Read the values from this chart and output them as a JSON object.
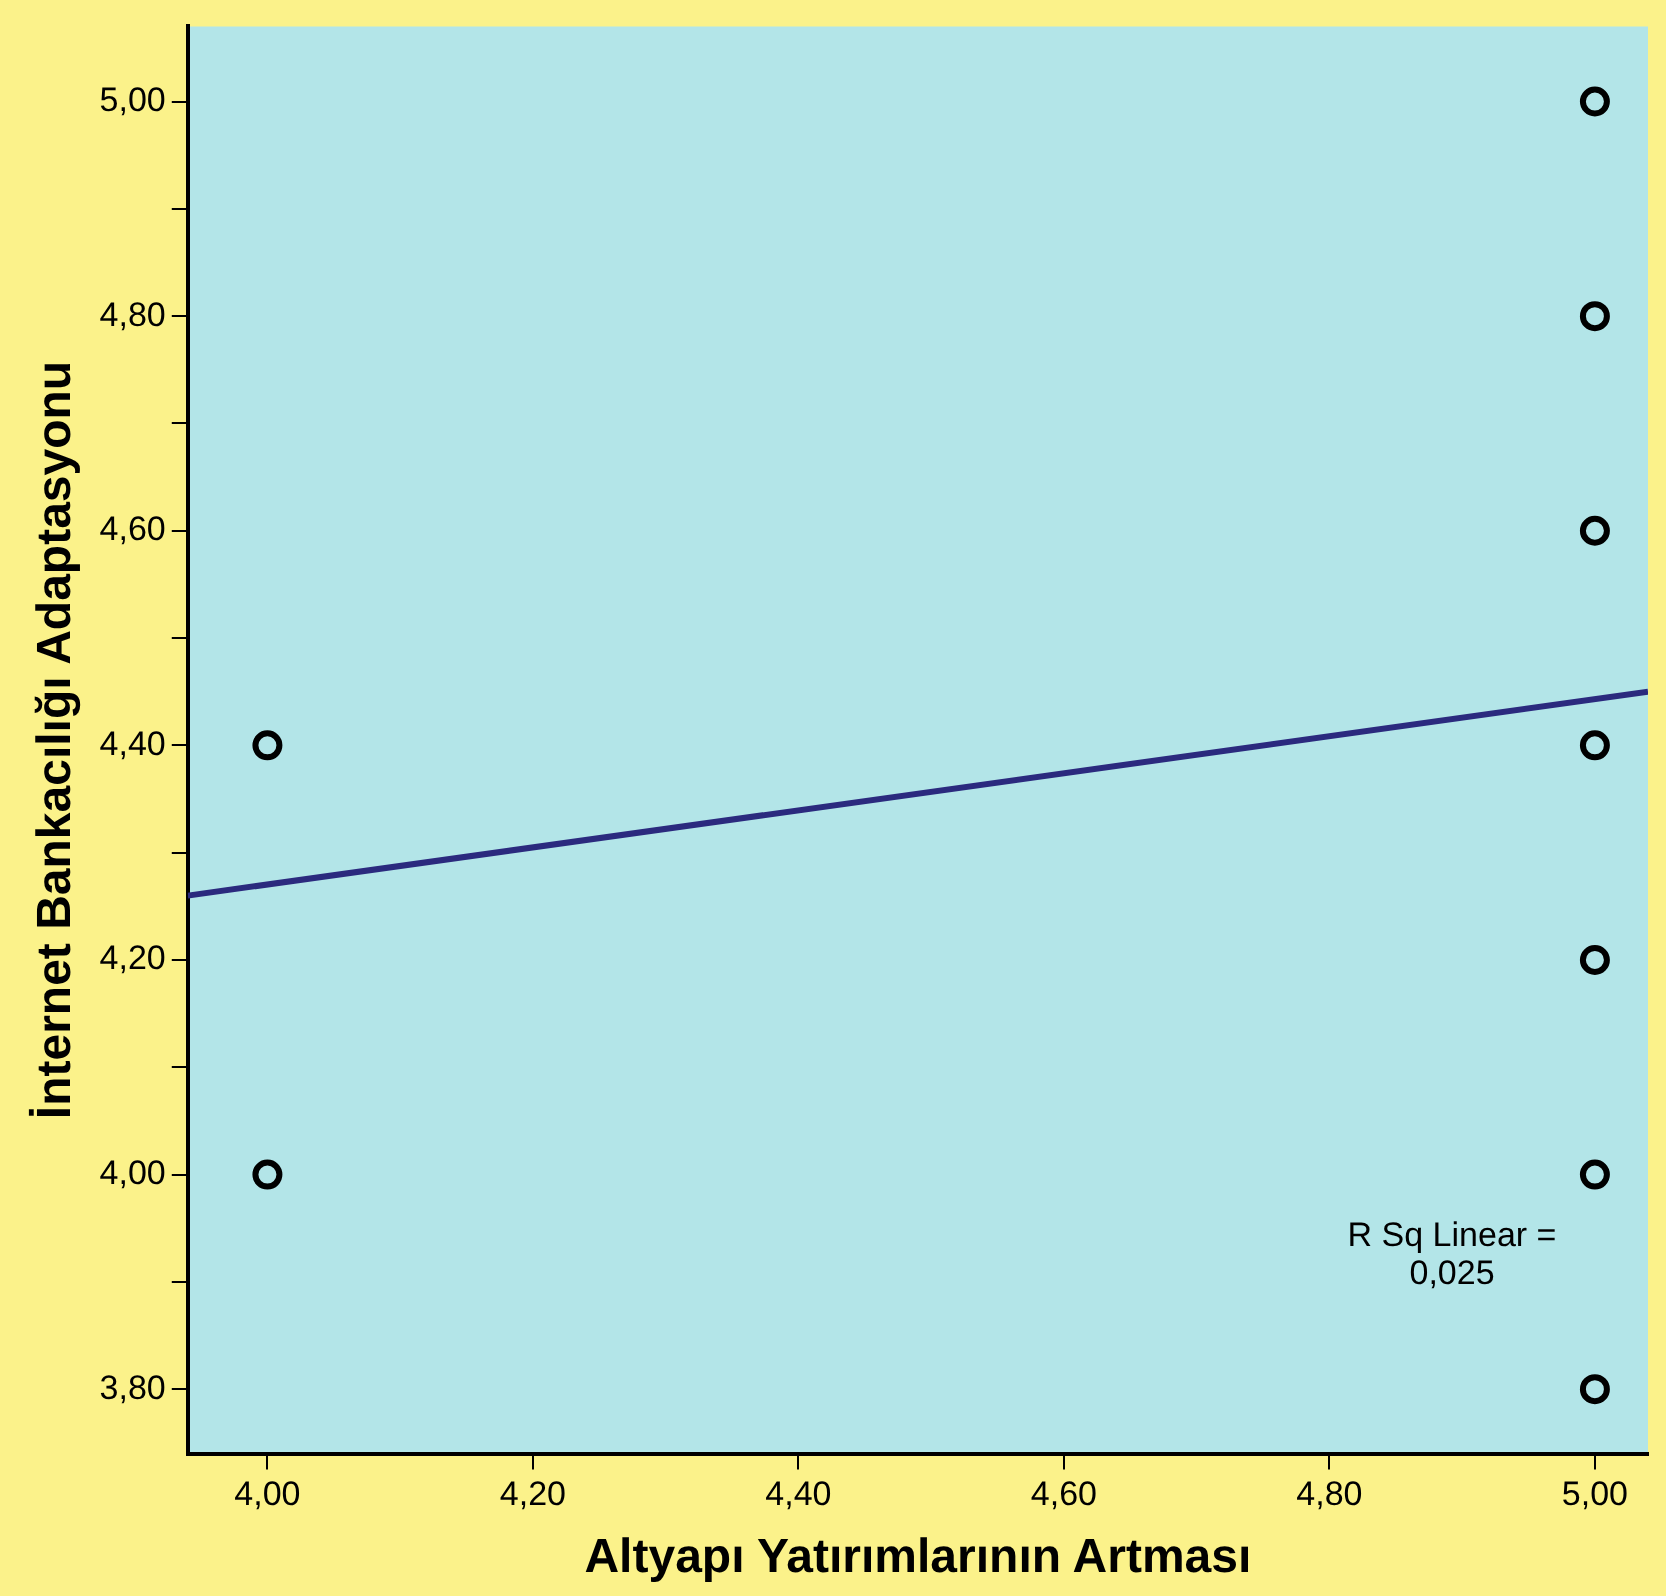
{
  "chart_data": {
    "type": "scatter",
    "xlabel": "Altyapı Yatırımlarının Artması",
    "ylabel": "İnternet Bankacılığı Adaptasyonu",
    "xlim": [
      3.94,
      5.04
    ],
    "ylim": [
      3.74,
      5.07
    ],
    "xticks": [
      {
        "value": 4,
        "label": "4,00"
      },
      {
        "value": 4.2,
        "label": "4,20"
      },
      {
        "value": 4.4,
        "label": "4,40"
      },
      {
        "value": 4.6,
        "label": "4,60"
      },
      {
        "value": 4.8,
        "label": "4,80"
      },
      {
        "value": 5,
        "label": "5,00"
      }
    ],
    "yticks": [
      {
        "value": 3.8,
        "label": "3,80"
      },
      {
        "value": 3.9,
        "label": null
      },
      {
        "value": 4,
        "label": "4,00"
      },
      {
        "value": 4.1,
        "label": null
      },
      {
        "value": 4.2,
        "label": "4,20"
      },
      {
        "value": 4.3,
        "label": null
      },
      {
        "value": 4.4,
        "label": "4,40"
      },
      {
        "value": 4.5,
        "label": null
      },
      {
        "value": 4.6,
        "label": "4,60"
      },
      {
        "value": 4.7,
        "label": null
      },
      {
        "value": 4.8,
        "label": "4,80"
      },
      {
        "value": 4.9,
        "label": null
      },
      {
        "value": 5,
        "label": "5,00"
      }
    ],
    "series": [
      {
        "type": "scatter",
        "color": "#000000",
        "x": [
          4,
          4,
          5,
          5,
          5,
          5,
          5,
          5,
          5
        ],
        "values": [
          4.4,
          4.0,
          5.0,
          4.8,
          4.6,
          4.4,
          4.2,
          4.0,
          3.8
        ]
      },
      {
        "type": "line",
        "marker": "none",
        "color": "#2b2a7e",
        "x": [
          3.94,
          5.04
        ],
        "values": [
          4.26,
          4.45
        ]
      }
    ],
    "annotations": [
      "R Sq Linear =\n0,025"
    ],
    "marker": "circle",
    "grid": false,
    "legend": false
  }
}
